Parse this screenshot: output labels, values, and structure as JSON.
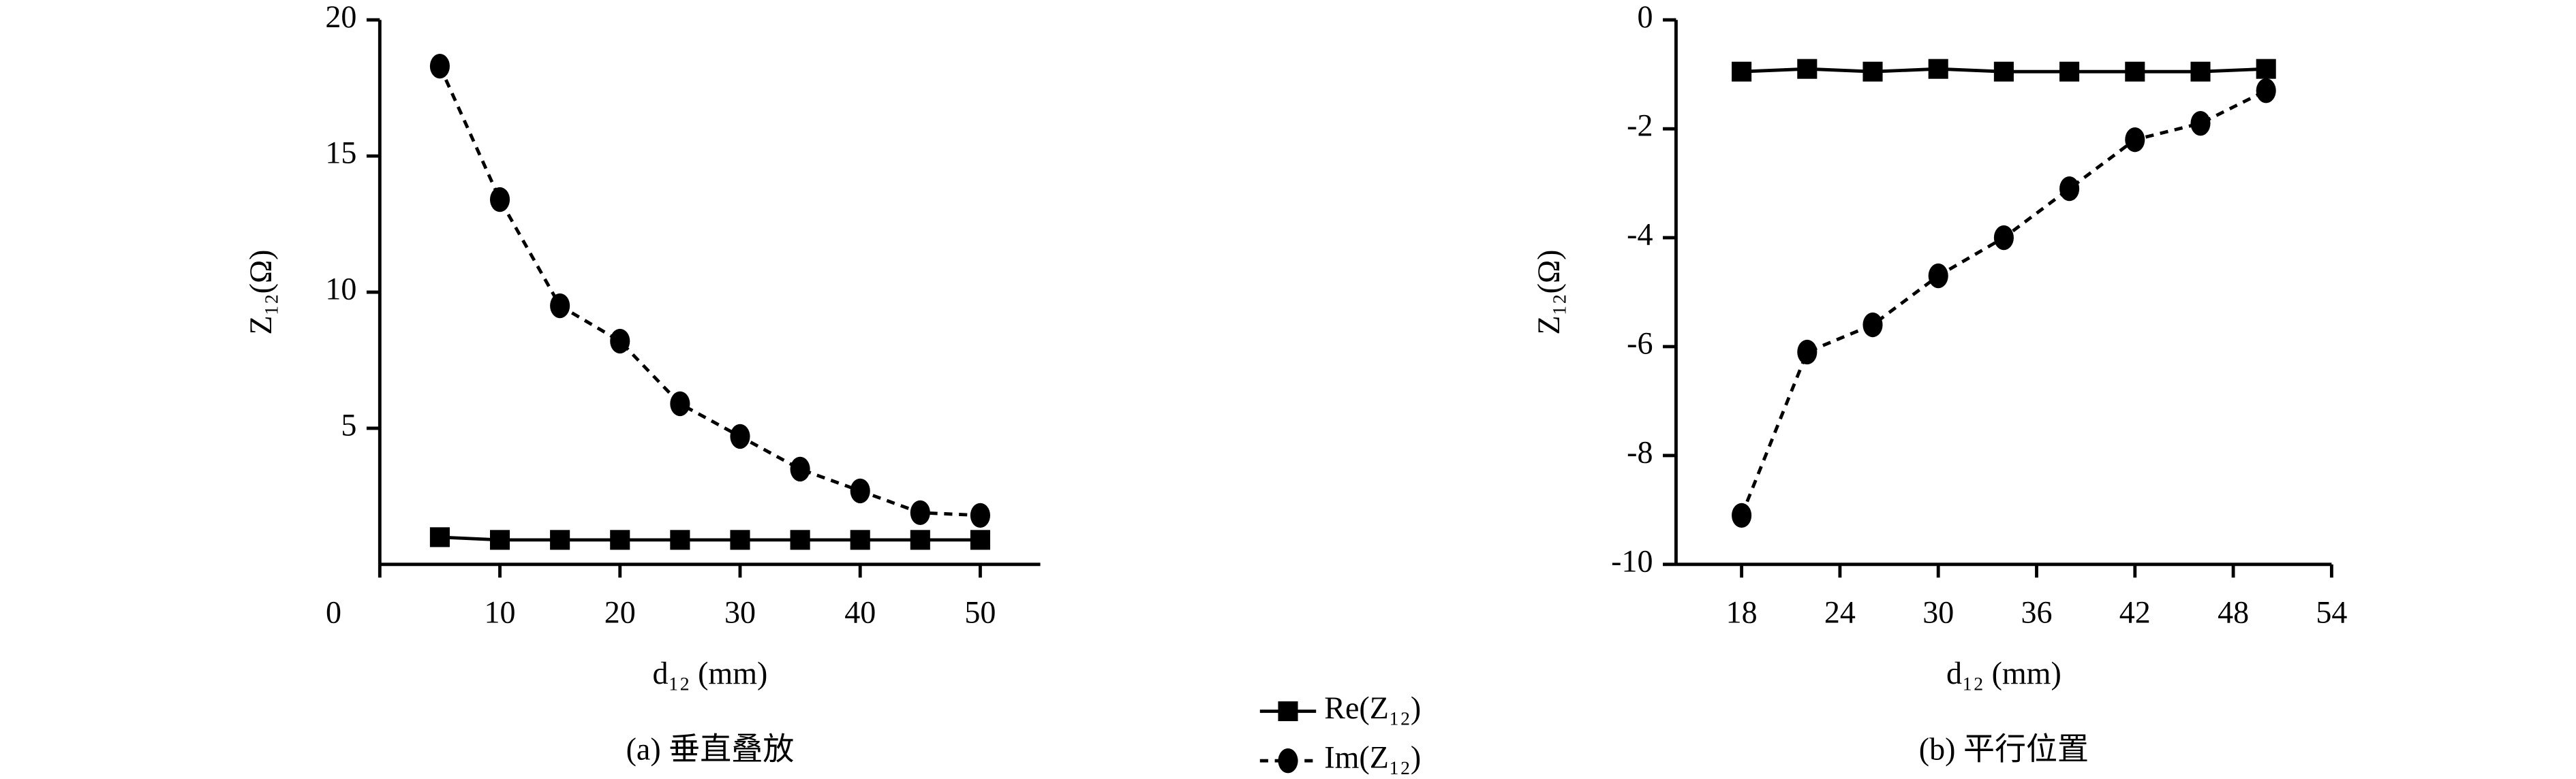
{
  "chart_data": [
    {
      "type": "line",
      "caption": "(a) 垂直叠放",
      "xlabel": "d₁₂ (mm)",
      "ylabel": "Z₁₂(Ω)",
      "x": [
        5,
        10,
        15,
        20,
        25,
        30,
        35,
        40,
        45,
        50
      ],
      "series": [
        {
          "name": "Re(Z₁₂)",
          "color": "#000000",
          "marker": "square",
          "line_style": "solid",
          "values": [
            1.0,
            0.9,
            0.9,
            0.9,
            0.9,
            0.9,
            0.9,
            0.9,
            0.9,
            0.9
          ]
        },
        {
          "name": "Im(Z₁₂)",
          "color": "#000000",
          "marker": "circle",
          "line_style": "dashed",
          "values": [
            18.3,
            13.4,
            9.5,
            8.2,
            5.9,
            4.7,
            3.5,
            2.7,
            1.9,
            1.8
          ]
        }
      ],
      "xlim": [
        0,
        55
      ],
      "ylim": [
        0,
        20
      ],
      "xticks": [
        0,
        10,
        20,
        30,
        40,
        50
      ],
      "yticks": [
        5,
        10,
        15,
        20
      ]
    },
    {
      "type": "line",
      "caption": "(b) 平行位置",
      "xlabel": "d₁₂ (mm)",
      "ylabel": "Z₁₂(Ω)",
      "x": [
        18,
        22,
        26,
        30,
        34,
        38,
        42,
        46,
        50
      ],
      "series": [
        {
          "name": "Re(Z₁₂)",
          "color": "#000000",
          "marker": "square",
          "line_style": "solid",
          "values": [
            -0.95,
            -0.9,
            -0.95,
            -0.9,
            -0.95,
            -0.95,
            -0.95,
            -0.95,
            -0.9
          ]
        },
        {
          "name": "Im(Z₁₂)",
          "color": "#000000",
          "marker": "circle",
          "line_style": "dashed",
          "values": [
            -9.1,
            -6.1,
            -5.6,
            -4.7,
            -4.0,
            -3.1,
            -2.2,
            -1.9,
            -1.3
          ]
        }
      ],
      "xlim": [
        14,
        54
      ],
      "ylim": [
        -10,
        0
      ],
      "xticks": [
        18,
        24,
        30,
        36,
        42,
        48,
        54
      ],
      "yticks": [
        -10,
        -8,
        -6,
        -4,
        -2,
        0
      ]
    }
  ]
}
